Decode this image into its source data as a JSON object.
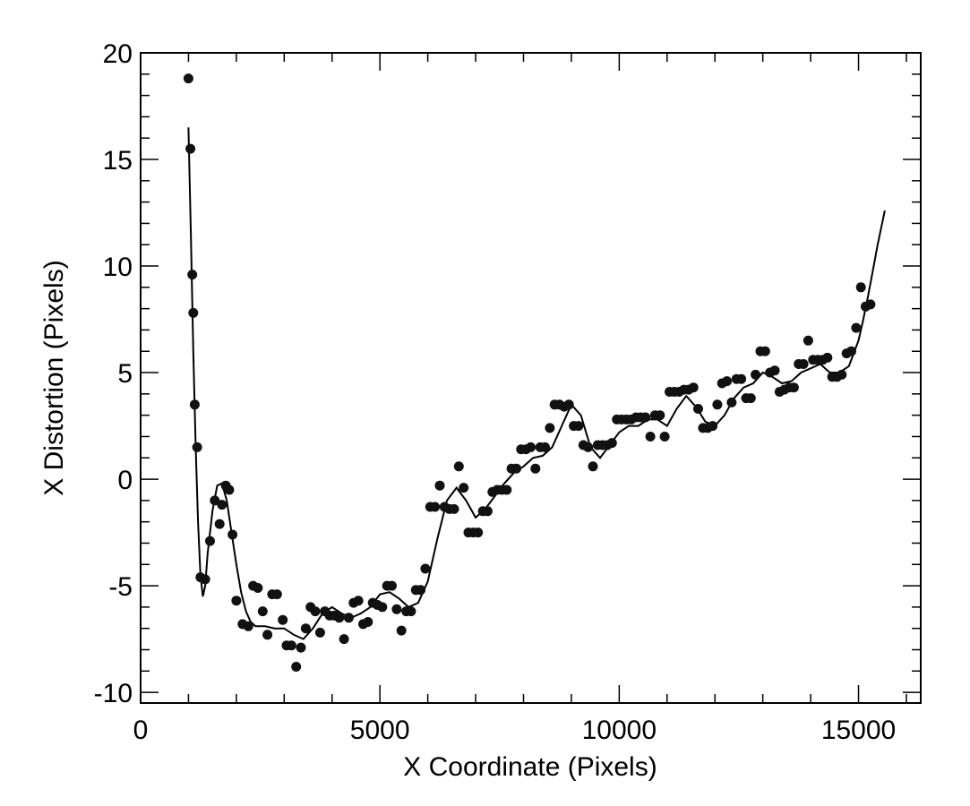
{
  "chart_data": {
    "type": "scatter",
    "title": "",
    "xlabel": "X Coordinate (Pixels)",
    "ylabel": "X Distortion (Pixels)",
    "xlim": [
      0,
      16300
    ],
    "ylim": [
      -10.5,
      20
    ],
    "xticks": [
      0,
      5000,
      10000,
      15000
    ],
    "xtick_labels": [
      "0",
      "5000",
      "10000",
      "15000"
    ],
    "yticks": [
      -10,
      -5,
      0,
      5,
      10,
      15,
      20
    ],
    "ytick_labels": [
      "-10",
      "-5",
      "0",
      "5",
      "10",
      "15",
      "20"
    ],
    "grid": false,
    "legend": "none",
    "colors": {
      "points": "#111111",
      "line": "#000000",
      "axes": "#000000"
    },
    "series": [
      {
        "kind": "points",
        "x": [
          1000,
          1040,
          1080,
          1100,
          1130,
          1180,
          1250,
          1350,
          1450,
          1550,
          1650,
          1700,
          1780,
          1850,
          1920,
          2000,
          2130,
          2250,
          2350,
          2450,
          2550,
          2650,
          2750,
          2850,
          2970,
          3050,
          3150,
          3250,
          3350,
          3450,
          3550,
          3650,
          3750,
          3850,
          3950,
          4050,
          4150,
          4250,
          4350,
          4450,
          4550,
          4650,
          4750,
          4850,
          4950,
          5050,
          5150,
          5250,
          5350,
          5450,
          5550,
          5650,
          5750,
          5850,
          5950,
          6050,
          6150,
          6250,
          6350,
          6450,
          6550,
          6650,
          6750,
          6850,
          6950,
          7050,
          7150,
          7250,
          7350,
          7450,
          7550,
          7650,
          7750,
          7850,
          7950,
          8050,
          8150,
          8250,
          8350,
          8450,
          8550,
          8650,
          8750,
          8850,
          8950,
          9050,
          9150,
          9250,
          9350,
          9450,
          9550,
          9650,
          9750,
          9850,
          9950,
          10050,
          10150,
          10250,
          10350,
          10450,
          10550,
          10650,
          10750,
          10850,
          10950,
          11050,
          11150,
          11250,
          11350,
          11450,
          11550,
          11650,
          11750,
          11850,
          11950,
          12050,
          12150,
          12250,
          12350,
          12450,
          12550,
          12650,
          12750,
          12850,
          12950,
          13050,
          13150,
          13250,
          13350,
          13450,
          13550,
          13650,
          13750,
          13850,
          13950,
          14050,
          14150,
          14250,
          14350,
          14450,
          14550,
          14650,
          14750,
          14850,
          14950,
          15050,
          15150,
          15250
        ],
        "y": [
          18.8,
          15.5,
          9.6,
          7.8,
          3.5,
          1.5,
          -4.6,
          -4.7,
          -2.9,
          -1.0,
          -2.1,
          -1.2,
          -0.3,
          -0.5,
          -2.6,
          -5.7,
          -6.8,
          -6.9,
          -5.0,
          -5.1,
          -6.2,
          -7.3,
          -5.4,
          -5.4,
          -6.6,
          -7.8,
          -7.8,
          -8.8,
          -7.9,
          -7.0,
          -6.0,
          -6.2,
          -7.2,
          -6.2,
          -6.4,
          -6.4,
          -6.5,
          -7.5,
          -6.5,
          -5.8,
          -5.7,
          -6.8,
          -6.7,
          -5.8,
          -5.9,
          -6.0,
          -5.0,
          -5.0,
          -6.1,
          -7.1,
          -6.2,
          -6.2,
          -5.2,
          -5.2,
          -4.2,
          -1.3,
          -1.3,
          -0.3,
          -1.3,
          -1.4,
          -1.4,
          0.6,
          -0.4,
          -2.5,
          -2.5,
          -2.5,
          -1.5,
          -1.5,
          -0.6,
          -0.5,
          -0.5,
          -0.5,
          0.5,
          0.5,
          1.4,
          1.4,
          1.5,
          0.5,
          1.5,
          1.5,
          2.4,
          3.5,
          3.5,
          3.4,
          3.5,
          2.5,
          2.5,
          1.6,
          1.5,
          0.6,
          1.6,
          1.6,
          1.6,
          1.7,
          2.8,
          2.8,
          2.8,
          2.8,
          2.9,
          2.9,
          2.9,
          2.0,
          3.0,
          3.0,
          2.0,
          4.1,
          4.1,
          4.1,
          4.2,
          4.2,
          4.3,
          3.3,
          2.4,
          2.4,
          2.5,
          3.5,
          4.5,
          4.6,
          3.6,
          4.7,
          4.7,
          3.8,
          3.8,
          4.9,
          6.0,
          6.0,
          5.0,
          5.1,
          4.1,
          4.2,
          4.3,
          4.3,
          5.4,
          5.4,
          6.5,
          5.6,
          5.6,
          5.6,
          5.7,
          4.8,
          4.8,
          4.9,
          5.9,
          6.0,
          7.1,
          9.0,
          8.1,
          8.2
        ]
      },
      {
        "kind": "fit-curve",
        "x": [
          1000,
          1050,
          1100,
          1150,
          1200,
          1250,
          1300,
          1350,
          1400,
          1500,
          1600,
          1700,
          1800,
          1900,
          2000,
          2100,
          2200,
          2300,
          2400,
          2600,
          2800,
          3000,
          3200,
          3400,
          3600,
          3800,
          4000,
          4200,
          4400,
          4600,
          4800,
          5000,
          5200,
          5400,
          5600,
          5800,
          6000,
          6200,
          6400,
          6600,
          6800,
          7000,
          7200,
          7400,
          7600,
          7800,
          8000,
          8200,
          8400,
          8600,
          8800,
          9000,
          9200,
          9400,
          9600,
          9800,
          10000,
          10200,
          10400,
          10600,
          10800,
          11000,
          11200,
          11400,
          11600,
          11800,
          12000,
          12200,
          12400,
          12600,
          12800,
          13000,
          13200,
          13400,
          13600,
          13800,
          14000,
          14200,
          14400,
          14600,
          14800,
          15000,
          15100,
          15200,
          15300,
          15400,
          15550
        ],
        "y": [
          16.5,
          11.5,
          6.0,
          1.5,
          -2.0,
          -4.5,
          -5.5,
          -5.0,
          -3.5,
          -1.5,
          -0.3,
          -0.2,
          -1.0,
          -2.5,
          -4.0,
          -5.3,
          -6.2,
          -6.7,
          -6.9,
          -6.9,
          -7.0,
          -7.0,
          -7.3,
          -7.5,
          -7.0,
          -6.3,
          -6.0,
          -6.3,
          -6.5,
          -6.3,
          -6.0,
          -5.4,
          -5.3,
          -5.6,
          -6.0,
          -5.8,
          -4.8,
          -2.8,
          -1.0,
          -0.4,
          -1.0,
          -1.8,
          -1.4,
          -0.8,
          -0.2,
          0.3,
          0.6,
          1.0,
          1.1,
          1.5,
          2.5,
          3.5,
          3.0,
          1.5,
          1.0,
          1.6,
          2.2,
          2.5,
          2.5,
          2.8,
          2.8,
          2.5,
          3.3,
          3.9,
          3.4,
          2.7,
          2.5,
          3.0,
          3.8,
          4.3,
          4.5,
          5.0,
          4.8,
          4.5,
          4.6,
          5.0,
          5.2,
          5.4,
          5.0,
          5.0,
          5.3,
          6.5,
          7.5,
          8.6,
          9.8,
          11.0,
          12.6
        ]
      }
    ]
  }
}
